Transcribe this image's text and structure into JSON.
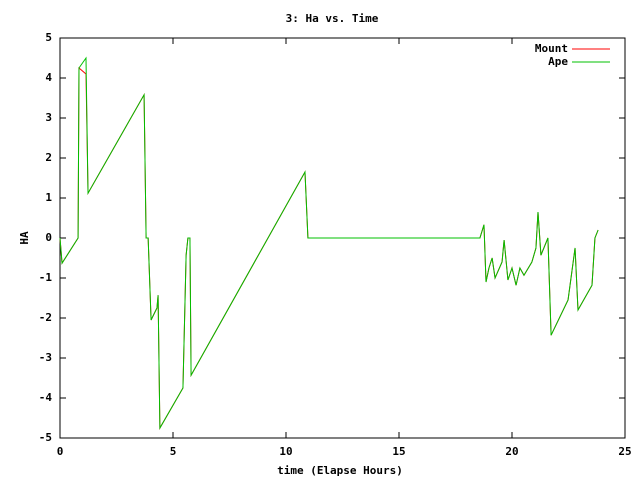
{
  "chart_data": {
    "type": "line",
    "title": "3: Ha vs. Time",
    "xlabel": "time (Elapse Hours)",
    "ylabel": "HA",
    "x": [
      0,
      0.09,
      0.8,
      0.84,
      1.15,
      1.24,
      3.72,
      3.81,
      3.9,
      4.03,
      4.29,
      4.34,
      4.42,
      5.44,
      5.58,
      5.66,
      5.75,
      5.8,
      10.84,
      10.97,
      18.58,
      18.76,
      18.85,
      18.98,
      19.12,
      19.25,
      19.56,
      19.65,
      19.82,
      20,
      20.18,
      20.35,
      20.53,
      20.88,
      21.06,
      21.15,
      21.28,
      21.59,
      21.73,
      22.48,
      22.79,
      22.92,
      23.54,
      23.67,
      23.81
    ],
    "series": [
      {
        "name": "Mount",
        "color": "#ff0000",
        "values": [
          0,
          -0.63,
          0,
          4.25,
          4.1,
          1.12,
          3.58,
          0,
          0,
          -2.05,
          -1.75,
          -1.43,
          -4.75,
          -3.75,
          -0.43,
          0,
          0,
          -3.43,
          1.65,
          0,
          0,
          0.33,
          -1.1,
          -0.75,
          -0.5,
          -1.0,
          -0.6,
          -0.05,
          -1.05,
          -0.75,
          -1.18,
          -0.75,
          -0.93,
          -0.6,
          -0.25,
          0.65,
          -0.43,
          0,
          -2.43,
          -1.55,
          -0.25,
          -1.8,
          -1.18,
          0,
          0.2
        ]
      },
      {
        "name": "Ape",
        "color": "#00c000",
        "values": [
          0,
          -0.63,
          0,
          4.25,
          4.5,
          1.12,
          3.58,
          0,
          0,
          -2.05,
          -1.75,
          -1.43,
          -4.75,
          -3.75,
          -0.43,
          0,
          0,
          -3.43,
          1.65,
          0,
          0,
          0.33,
          -1.1,
          -0.75,
          -0.5,
          -1.0,
          -0.6,
          -0.05,
          -1.05,
          -0.75,
          -1.18,
          -0.75,
          -0.93,
          -0.6,
          -0.25,
          0.65,
          -0.43,
          0,
          -2.43,
          -1.55,
          -0.25,
          -1.8,
          -1.18,
          0,
          0.2
        ]
      }
    ],
    "xlim": [
      0,
      25
    ],
    "xticks": [
      0,
      5,
      10,
      15,
      20,
      25
    ],
    "ylim": [
      -5,
      5
    ],
    "yticks": [
      -5,
      -4,
      -3,
      -2,
      -1,
      0,
      1,
      2,
      3,
      4,
      5
    ],
    "grid": false,
    "legend": "top-right"
  }
}
